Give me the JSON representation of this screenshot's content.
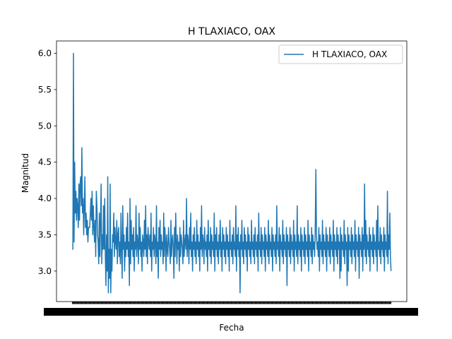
{
  "chart_data": {
    "type": "line",
    "title": "H TLAXIACO, OAX",
    "xlabel": "Fecha",
    "ylabel": "Magnitud",
    "ylim": [
      2.58,
      6.17
    ],
    "yticks": [
      "3.0",
      "3.5",
      "4.0",
      "4.5",
      "5.0",
      "5.5",
      "6.0"
    ],
    "grid": false,
    "legend": "top-right",
    "line_color": "#1f77b4",
    "series": [
      {
        "name": "H TLAXIACO, OAX",
        "values": [
          3.3,
          3.3,
          6.0,
          3.4,
          4.5,
          3.8,
          4.1,
          3.7,
          4.0,
          3.9,
          3.6,
          4.2,
          3.7,
          4.2,
          4.3,
          3.9,
          4.7,
          3.8,
          4.0,
          3.5,
          3.9,
          4.3,
          3.6,
          3.8,
          3.5,
          3.7,
          3.4,
          3.6,
          3.6,
          3.6,
          3.8,
          4.0,
          3.7,
          4.1,
          3.5,
          3.9,
          3.6,
          3.4,
          3.7,
          3.2,
          4.1,
          3.9,
          3.5,
          3.4,
          3.1,
          3.8,
          3.2,
          3.7,
          4.2,
          3.1,
          3.5,
          3.3,
          3.9,
          3.3,
          4.0,
          3.2,
          2.8,
          3.5,
          3.0,
          4.3,
          2.7,
          3.3,
          2.9,
          4.2,
          2.7,
          3.3,
          3.0,
          3.5,
          3.4,
          3.8,
          3.2,
          3.6,
          3.4,
          3.3,
          3.7,
          3.1,
          3.5,
          3.6,
          3.2,
          3.4,
          3.1,
          3.8,
          3.3,
          2.9,
          3.9,
          3.3,
          3.5,
          3.0,
          3.4,
          3.2,
          3.6,
          3.3,
          3.8,
          3.2,
          3.4,
          2.8,
          4.0,
          3.1,
          3.7,
          3.3,
          3.5,
          3.2,
          3.6,
          3.0,
          3.4,
          3.3,
          3.9,
          3.2,
          3.5,
          3.4,
          3.1,
          3.8,
          3.3,
          3.6,
          3.2,
          3.4,
          3.0,
          3.5,
          3.4,
          3.2,
          3.7,
          3.3,
          3.9,
          3.2,
          3.5,
          3.1,
          3.6,
          3.4,
          3.3,
          3.5,
          3.2,
          3.8,
          3.0,
          3.4,
          3.3,
          3.6,
          3.2,
          3.5,
          3.4,
          3.1,
          3.9,
          3.2,
          3.4,
          2.9,
          3.6,
          3.3,
          3.7,
          3.2,
          3.5,
          3.3,
          3.4,
          3.1,
          3.8,
          3.2,
          3.6,
          3.4,
          3.0,
          3.5,
          3.3,
          3.2,
          3.6,
          3.4,
          3.3,
          3.1,
          3.7,
          3.2,
          3.4,
          3.5,
          3.3,
          2.9,
          3.6,
          3.2,
          3.8,
          3.4,
          3.1,
          3.5,
          3.3,
          3.4,
          3.0,
          3.6,
          3.2,
          3.5,
          3.4,
          3.3,
          3.1,
          3.7,
          3.2,
          3.4,
          3.5,
          3.3,
          4.0,
          3.2,
          3.5,
          3.4,
          3.1,
          3.6,
          3.3,
          3.8,
          3.2,
          3.4,
          3.0,
          3.5,
          3.3,
          3.6,
          3.2,
          3.4,
          3.1,
          3.7,
          3.3,
          3.5,
          3.2,
          3.4,
          3.0,
          3.6,
          3.3,
          3.9,
          3.2,
          3.5,
          3.4,
          3.1,
          3.6,
          3.3,
          3.4,
          3.2,
          3.5,
          3.0,
          3.7,
          3.3,
          3.4,
          3.2,
          3.6,
          3.1,
          3.5,
          3.3,
          3.4,
          3.2,
          3.8,
          3.0,
          3.5,
          3.3,
          3.6,
          3.2,
          3.4,
          3.1,
          3.5,
          3.3,
          3.7,
          3.2,
          3.4,
          3.0,
          3.6,
          3.3,
          3.5,
          3.2,
          3.4,
          3.1,
          3.6,
          3.3,
          3.5,
          3.2,
          3.4,
          3.0,
          3.7,
          3.3,
          3.4,
          3.2,
          3.5,
          3.1,
          3.6,
          3.3,
          3.4,
          3.2,
          3.9,
          3.0,
          3.5,
          3.3,
          3.6,
          3.2,
          3.4,
          2.7,
          3.5,
          3.3,
          3.7,
          3.2,
          3.4,
          3.1,
          3.6,
          3.3,
          3.5,
          3.2,
          3.4,
          3.0,
          3.6,
          3.3,
          3.5,
          3.2,
          3.4,
          3.1,
          3.7,
          3.3,
          3.4,
          3.2,
          3.5,
          3.1,
          3.6,
          3.3,
          3.4,
          3.2,
          3.5,
          3.0,
          3.8,
          3.3,
          3.4,
          3.2,
          3.6,
          3.1,
          3.5,
          3.3,
          3.4,
          3.2,
          3.6,
          3.0,
          3.5,
          3.3,
          3.4,
          3.2,
          3.7,
          3.1,
          3.5,
          3.3,
          3.4,
          3.2,
          3.6,
          3.0,
          3.5,
          3.3,
          3.4,
          3.2,
          3.5,
          3.1,
          3.9,
          3.3,
          3.4,
          3.2,
          3.6,
          3.0,
          3.5,
          3.3,
          3.4,
          3.2,
          3.7,
          3.1,
          3.5,
          3.3,
          3.4,
          3.2,
          3.6,
          2.8,
          3.5,
          3.3,
          3.4,
          3.2,
          3.6,
          3.1,
          3.5,
          3.3,
          3.4,
          3.2,
          3.7,
          3.0,
          3.5,
          3.3,
          3.4,
          3.2,
          3.9,
          3.1,
          3.5,
          3.3,
          3.4,
          3.2,
          3.6,
          3.0,
          3.5,
          3.3,
          3.4,
          3.2,
          3.6,
          3.1,
          3.5,
          3.3,
          3.4,
          3.2,
          3.7,
          3.0,
          3.5,
          3.3,
          3.4,
          3.2,
          3.6,
          3.1,
          3.5,
          3.3,
          3.4,
          3.2,
          3.6,
          4.4,
          3.5,
          3.3,
          3.4,
          3.2,
          3.6,
          3.0,
          3.5,
          3.3,
          3.4,
          3.2,
          3.7,
          3.1,
          3.5,
          3.3,
          3.4,
          3.2,
          3.6,
          3.0,
          3.5,
          3.3,
          3.4,
          3.2,
          3.6,
          3.1,
          3.5,
          3.3,
          3.4,
          3.2,
          3.7,
          3.0,
          3.5,
          3.3,
          3.4,
          3.2,
          3.6,
          3.1,
          3.5,
          3.3,
          3.4,
          2.9,
          3.6,
          3.0,
          3.5,
          3.3,
          3.4,
          3.2,
          3.7,
          3.1,
          3.5,
          3.3,
          3.4,
          2.8,
          3.6,
          3.0,
          3.5,
          3.3,
          3.4,
          3.2,
          3.6,
          3.1,
          3.5,
          3.3,
          3.4,
          3.2,
          3.7,
          3.0,
          3.5,
          3.3,
          3.4,
          3.2,
          3.6,
          2.9,
          3.5,
          3.3,
          3.4,
          3.2,
          3.6,
          3.0,
          3.5,
          3.3,
          4.2,
          3.2,
          3.7,
          3.1,
          3.5,
          3.3,
          3.4,
          3.2,
          3.6,
          3.0,
          3.5,
          3.3,
          3.4,
          3.2,
          3.6,
          3.1,
          3.5,
          3.3,
          3.4,
          3.2,
          3.7,
          3.0,
          3.9,
          3.3,
          3.4,
          3.2,
          3.6,
          3.1,
          3.5,
          3.3,
          3.4,
          3.2,
          3.6,
          3.0,
          3.5,
          3.3,
          3.4,
          3.2,
          4.1,
          3.1,
          3.5,
          3.3,
          3.8,
          3.2,
          3.0
        ]
      }
    ]
  }
}
